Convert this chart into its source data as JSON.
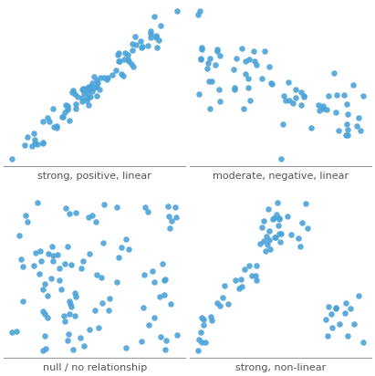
{
  "dot_color": "#4ba3d9",
  "dot_size": 22,
  "alpha": 0.9,
  "labels": [
    "strong, positive, linear",
    "moderate, negative, linear",
    "null / no relationship",
    "strong, non-linear"
  ],
  "label_fontsize": 8,
  "figsize": [
    4.11,
    4.12
  ],
  "dpi": 100,
  "seed": 7,
  "spine_color": "#999999",
  "label_color": "#555555"
}
